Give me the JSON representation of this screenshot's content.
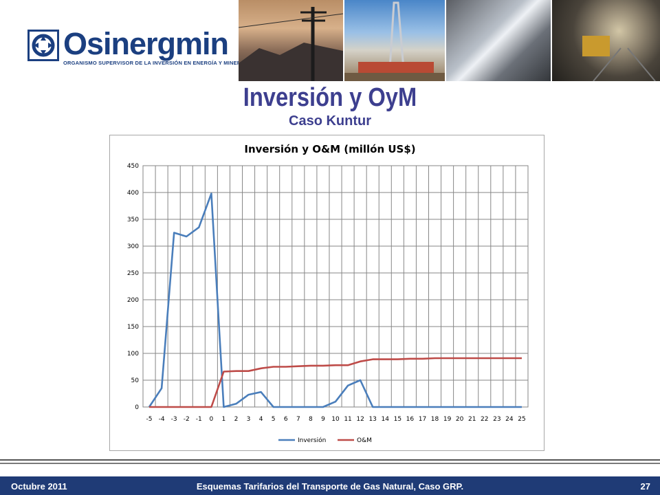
{
  "brand": {
    "name": "Osinergmin",
    "tagline": "ORGANISMO SUPERVISOR DE LA INVERSIÓN EN ENERGÍA Y MINERÍA",
    "color": "#1b3f80"
  },
  "header_photos": [
    "power-lines-photo",
    "drilling-rig-photo",
    "pipeline-welding-photo",
    "mine-tunnel-photo"
  ],
  "slide": {
    "title": "Inversión y OyM",
    "subtitle": "Caso Kuntur"
  },
  "chart_data": {
    "type": "line",
    "title": "Inversión y O&M (millón US$)",
    "x": [
      -5,
      -4,
      -3,
      -2,
      -1,
      0,
      1,
      2,
      3,
      4,
      5,
      6,
      7,
      8,
      9,
      10,
      11,
      12,
      13,
      14,
      15,
      16,
      17,
      18,
      19,
      20,
      21,
      22,
      23,
      24,
      25
    ],
    "ylim": [
      0,
      450
    ],
    "yticks": [
      0,
      50,
      100,
      150,
      200,
      250,
      300,
      350,
      400,
      450
    ],
    "grid": true,
    "legend_position": "bottom",
    "series": [
      {
        "name": "Inversión",
        "color": "#4a7ebb",
        "values": [
          0,
          35,
          325,
          318,
          335,
          398,
          0,
          6,
          23,
          28,
          0,
          0,
          0,
          0,
          0,
          10,
          40,
          50,
          0,
          0,
          0,
          0,
          0,
          0,
          0,
          0,
          0,
          0,
          0,
          0,
          0
        ]
      },
      {
        "name": "O&M",
        "color": "#be4b48",
        "values": [
          0,
          0,
          0,
          0,
          0,
          0,
          66,
          67,
          67,
          72,
          75,
          75,
          76,
          77,
          77,
          78,
          78,
          85,
          89,
          89,
          89,
          90,
          90,
          91,
          91,
          91,
          91,
          91,
          91,
          91,
          91
        ]
      }
    ]
  },
  "footer": {
    "date": "Octubre 2011",
    "center": "Esquemas Tarifarios del Transporte de Gas Natural, Caso GRP.",
    "page": "27"
  }
}
